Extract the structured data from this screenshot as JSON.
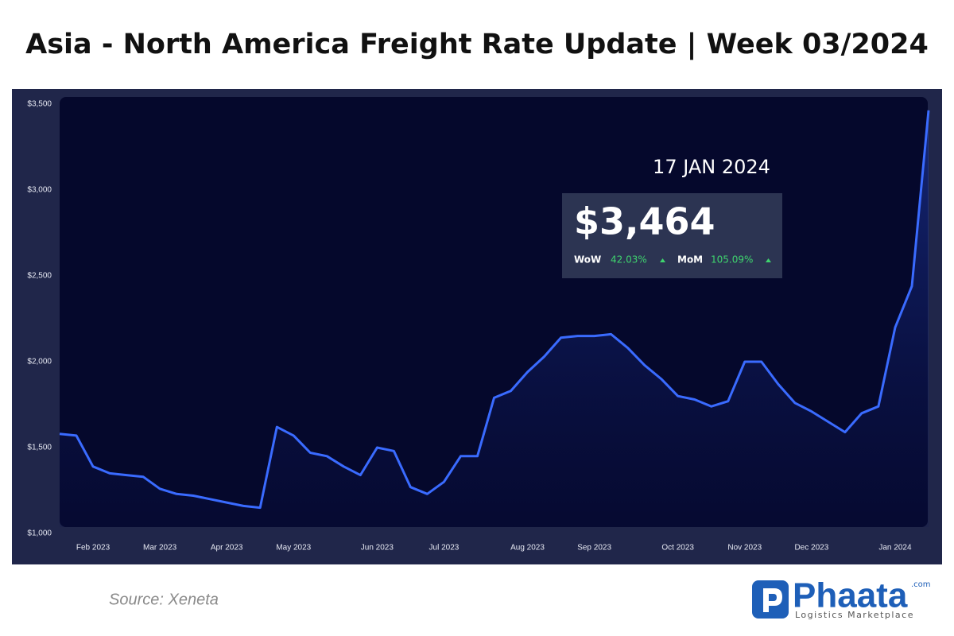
{
  "chart_data": {
    "type": "line",
    "title": "Asia - North America Freight Rate Update | Week 03/2024",
    "categories": [
      null,
      null,
      "Feb 2023",
      null,
      null,
      null,
      "Mar 2023",
      null,
      null,
      null,
      "Apr 2023",
      null,
      null,
      null,
      "May 2023",
      null,
      null,
      null,
      null,
      "Jun 2023",
      null,
      null,
      null,
      "Jul 2023",
      null,
      null,
      null,
      null,
      "Aug 2023",
      null,
      null,
      null,
      "Sep 2023",
      null,
      null,
      null,
      null,
      "Oct 2023",
      null,
      null,
      null,
      "Nov 2023",
      null,
      null,
      null,
      "Dec 2023",
      null,
      null,
      null,
      null,
      "Jan 2024",
      null,
      null
    ],
    "series": [
      {
        "name": null,
        "color": "#3a6bff",
        "values": [
          1580,
          1570,
          1390,
          1350,
          1340,
          1330,
          1260,
          1230,
          1220,
          1200,
          1180,
          1160,
          1150,
          1620,
          1570,
          1470,
          1450,
          1390,
          1340,
          1500,
          1480,
          1270,
          1230,
          1300,
          1450,
          1450,
          1790,
          1830,
          1940,
          2030,
          2140,
          2150,
          2150,
          2160,
          2080,
          1980,
          1900,
          1800,
          1780,
          1740,
          1770,
          2000,
          2000,
          1870,
          1760,
          1710,
          1650,
          1590,
          1700,
          1740,
          2200,
          2440,
          3464
        ]
      }
    ],
    "ylim": [
      1000,
      3500
    ],
    "yticks": [
      {
        "value": 1000,
        "label": "$1,000"
      },
      {
        "value": 1500,
        "label": "$1,500"
      },
      {
        "value": 2000,
        "label": "$2,000"
      },
      {
        "value": 2500,
        "label": "$2,500"
      },
      {
        "value": 3000,
        "label": "$3,000"
      },
      {
        "value": 3500,
        "label": "$3,500"
      }
    ],
    "grid": false,
    "annotation": {
      "date": "17 JAN 2024",
      "price": "$3,464",
      "wow_label": "WoW",
      "wow": "42.03%",
      "mom_label": "MoM",
      "mom": "105.09%"
    },
    "source": "Source: Xeneta"
  },
  "logo": {
    "name": "Phaata",
    "domain": ".com",
    "tagline": "Logistics Marketplace"
  }
}
